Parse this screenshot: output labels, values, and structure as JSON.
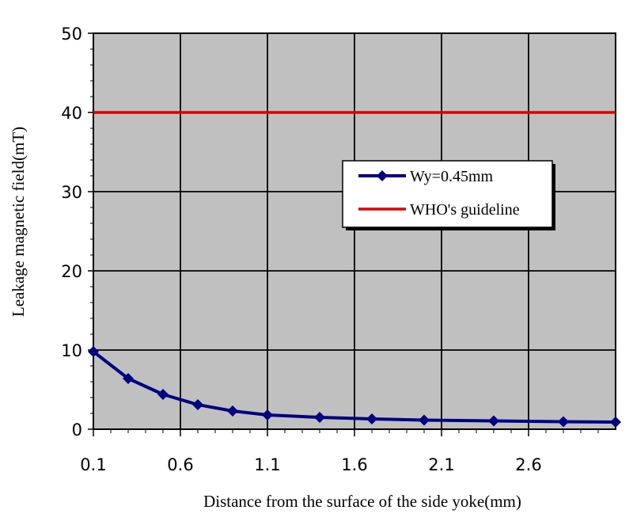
{
  "chart_data": {
    "type": "line",
    "title": "",
    "xlabel": "Distance from the surface of the side yoke(mm)",
    "ylabel": "Leakage magnetic field(mT)",
    "xlim": [
      0.1,
      3.1
    ],
    "ylim": [
      0,
      50
    ],
    "x_ticks": [
      "0.1",
      "0.6",
      "1.1",
      "1.6",
      "2.1",
      "2.6"
    ],
    "y_ticks": [
      "0",
      "10",
      "20",
      "30",
      "40",
      "50"
    ],
    "grid": true,
    "plot_background": "#c0c0c0",
    "legend_position": "center-right",
    "series": [
      {
        "name": "Wy=0.45mm",
        "color": "#000080",
        "marker": "diamond",
        "x": [
          0.1,
          0.3,
          0.5,
          0.7,
          0.9,
          1.1,
          1.4,
          1.7,
          2.0,
          2.4,
          2.8,
          3.1
        ],
        "y": [
          9.8,
          6.4,
          4.4,
          3.1,
          2.3,
          1.8,
          1.5,
          1.3,
          1.15,
          1.05,
          0.95,
          0.9
        ]
      },
      {
        "name": "WHO's guideline",
        "color": "#e00000",
        "marker": "none",
        "x": [
          0.1,
          3.1
        ],
        "y": [
          40,
          40
        ]
      }
    ]
  }
}
